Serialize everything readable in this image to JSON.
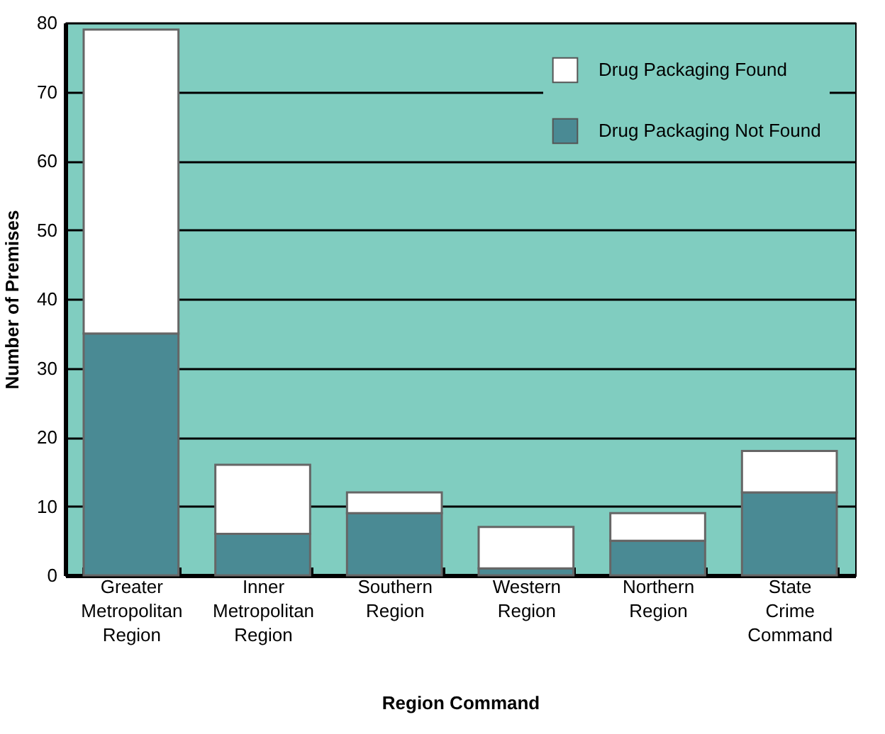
{
  "chart_data": {
    "type": "bar",
    "stacked": true,
    "xlabel": "Region Command",
    "ylabel": "Number of Premises",
    "categories": [
      "Greater Metropolitan Region",
      "Inner Metropolitan Region",
      "Southern Region",
      "Western Region",
      "Northern Region",
      "State Crime Command"
    ],
    "series": [
      {
        "name": "Drug Packaging Not Found",
        "color": "#4a8a94",
        "values": [
          35,
          6,
          9,
          1,
          5,
          12
        ]
      },
      {
        "name": "Drug Packaging Found",
        "color": "#ffffff",
        "values": [
          44,
          10,
          3,
          6,
          4,
          6
        ]
      }
    ],
    "ylim": [
      0,
      80
    ],
    "yticks": [
      0,
      10,
      20,
      30,
      40,
      50,
      60,
      70,
      80
    ],
    "grid": "y",
    "legend": "top right"
  }
}
